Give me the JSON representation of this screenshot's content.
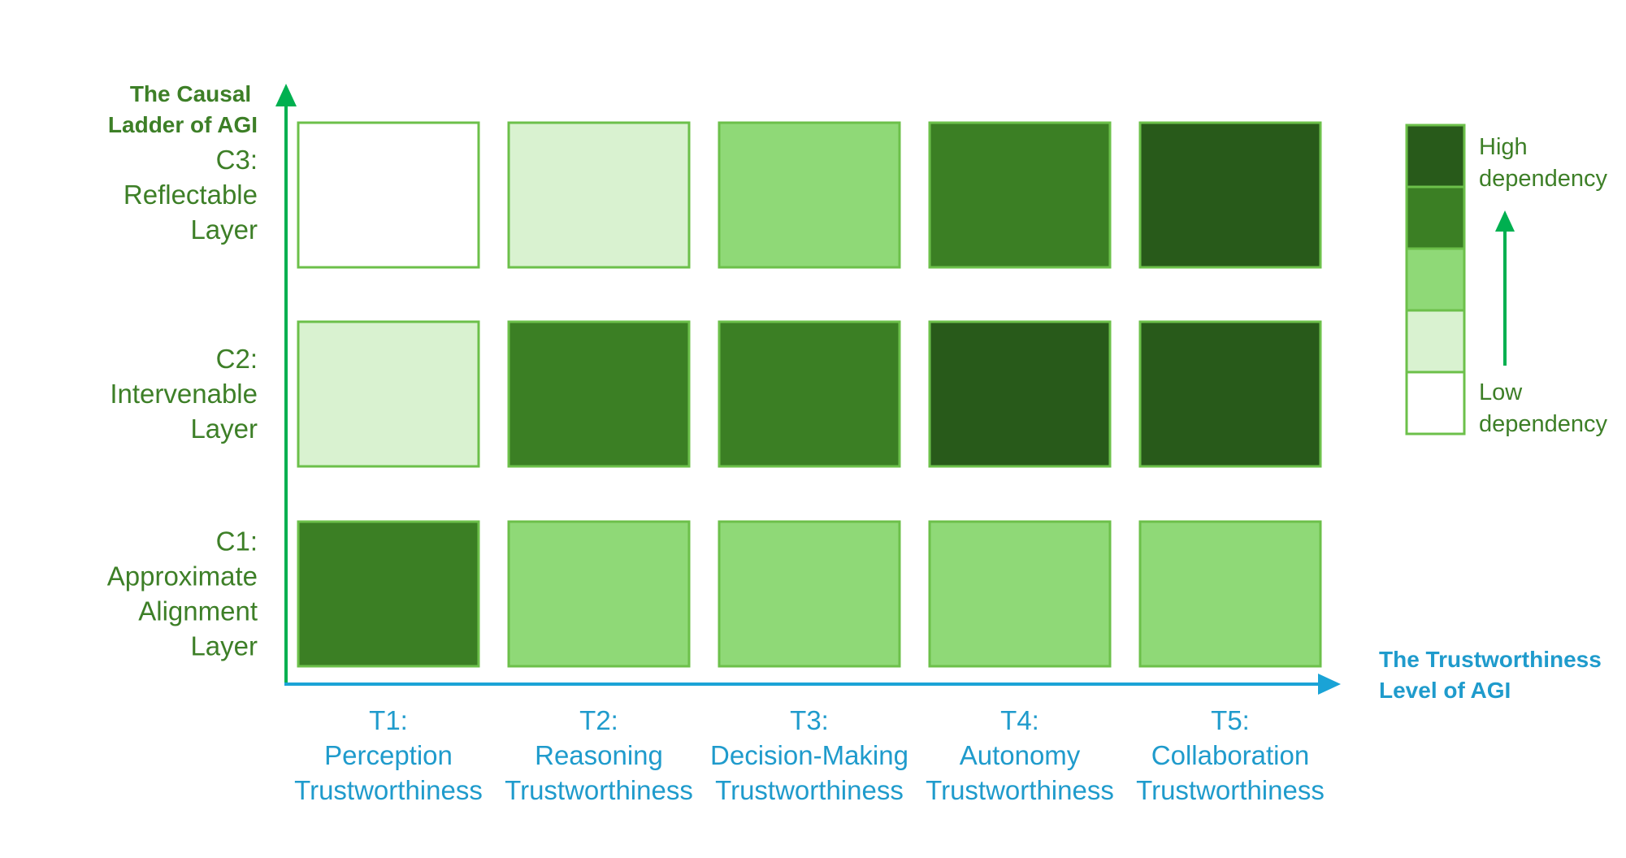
{
  "chart_data": {
    "type": "heatmap",
    "y_axis_title": [
      "The Causal",
      "Ladder of AGI"
    ],
    "x_axis_title": [
      "The Trustworthiness",
      "Level of AGI"
    ],
    "columns": [
      [
        "T1:",
        "Perception",
        "Trustworthiness"
      ],
      [
        "T2:",
        "Reasoning",
        "Trustworthiness"
      ],
      [
        "T3:",
        "Decision-Making",
        "Trustworthiness"
      ],
      [
        "T4:",
        "Autonomy",
        "Trustworthiness"
      ],
      [
        "T5:",
        "Collaboration",
        "Trustworthiness"
      ]
    ],
    "rows_top_to_bottom": [
      [
        "C3:",
        "Reflectable",
        "Layer"
      ],
      [
        "C2:",
        "Intervenable",
        "Layer"
      ],
      [
        "C1:",
        "Approximate",
        "Alignment",
        "Layer"
      ]
    ],
    "dependency_levels_top_to_bottom": [
      [
        0,
        1,
        2,
        3,
        4
      ],
      [
        1,
        3,
        3,
        4,
        4
      ],
      [
        3,
        2,
        2,
        2,
        2
      ]
    ],
    "level_scale": {
      "min": 0,
      "max": 4,
      "colors_low_to_high": [
        "#ffffff",
        "#d9f2d0",
        "#8fd977",
        "#3b7f24",
        "#285a1a"
      ]
    },
    "legend": {
      "high_label": [
        "High",
        "dependency"
      ],
      "low_label": [
        "Low",
        "dependency"
      ],
      "placement": "right"
    },
    "colors": {
      "green_text": "#3d7f27",
      "blue_text": "#1f9bcc",
      "cell_border": "#6cc04a",
      "y_axis_arrow": "#00b050",
      "x_axis_arrow": "#1aa3d6"
    }
  }
}
